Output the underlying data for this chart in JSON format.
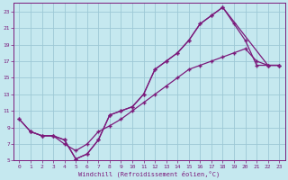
{
  "xlabel": "Windchill (Refroidissement éolien,°C)",
  "bg_color": "#c5e8ef",
  "grid_color": "#9dc8d5",
  "line_color": "#7b1a7b",
  "xlim": [
    -0.5,
    23.5
  ],
  "ylim": [
    5,
    24
  ],
  "xticks": [
    0,
    1,
    2,
    3,
    4,
    5,
    6,
    7,
    8,
    9,
    10,
    11,
    12,
    13,
    14,
    15,
    16,
    17,
    18,
    19,
    20,
    21,
    22,
    23
  ],
  "yticks": [
    5,
    7,
    9,
    11,
    13,
    15,
    17,
    19,
    21,
    23
  ],
  "line1_x": [
    0,
    1,
    2,
    3,
    4,
    5,
    6,
    7,
    8,
    9,
    10,
    11,
    12,
    13,
    14,
    15,
    16,
    17,
    18,
    19,
    20,
    21,
    22,
    23
  ],
  "line1_y": [
    10,
    8.5,
    8.0,
    8.0,
    7.5,
    5.2,
    5.8,
    7.5,
    10.5,
    11,
    11.5,
    13,
    16,
    17,
    18,
    19.5,
    21.5,
    22.5,
    23.5,
    21.5,
    19.5,
    16.5,
    16.5,
    16.5
  ],
  "line2_x": [
    1,
    2,
    3,
    4,
    5,
    6,
    7,
    8,
    9,
    10,
    11,
    12,
    13,
    14,
    15,
    16,
    17,
    18,
    19,
    20,
    21,
    22,
    23
  ],
  "line2_y": [
    8.5,
    8.0,
    8.0,
    7.0,
    6.2,
    7.0,
    8.5,
    9.2,
    10,
    11,
    12,
    13,
    14,
    15,
    16,
    16.5,
    17,
    17.5,
    18,
    18.5,
    17,
    16.5,
    16.5
  ],
  "line3_x": [
    0,
    1,
    2,
    3,
    4,
    5,
    6,
    7,
    8,
    9,
    10,
    11,
    12,
    13,
    14,
    15,
    16,
    17,
    18,
    22,
    23
  ],
  "line3_y": [
    10,
    8.5,
    8.0,
    8.0,
    7.5,
    5.2,
    5.8,
    7.5,
    10.5,
    11,
    11.5,
    13,
    16,
    17,
    18,
    19.5,
    21.5,
    22.5,
    23.5,
    16.5,
    16.5
  ]
}
